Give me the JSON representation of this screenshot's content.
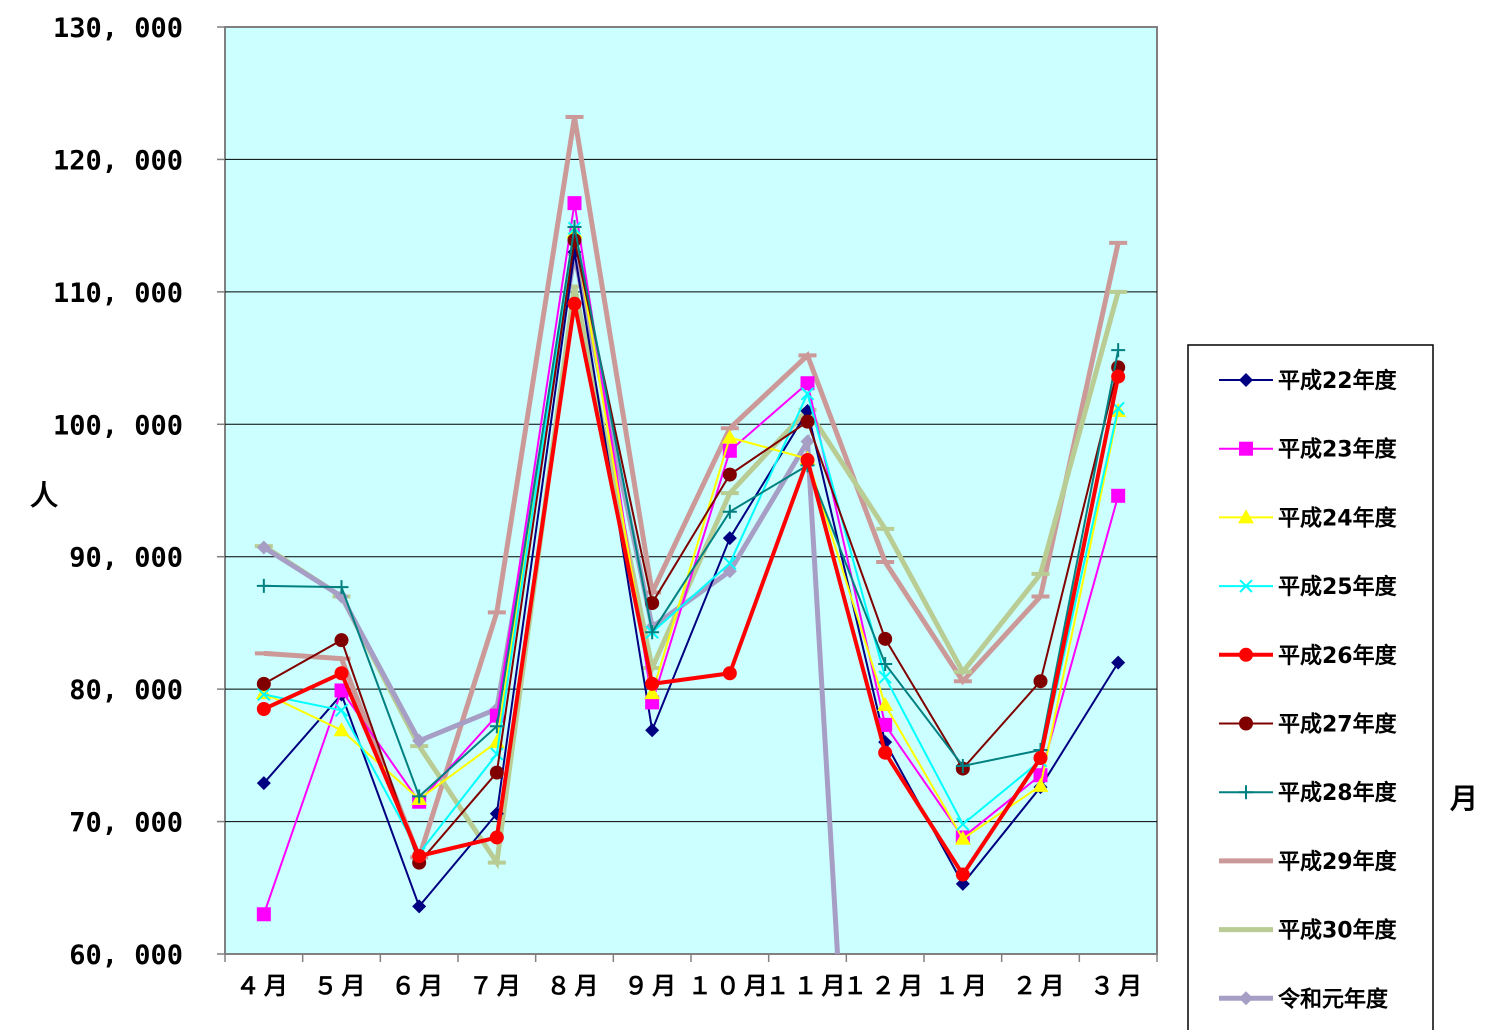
{
  "chart_data": {
    "type": "line",
    "ylabel": "人",
    "xlabel": "月",
    "ylim": [
      60000,
      130000
    ],
    "yticks": [
      60000,
      70000,
      80000,
      90000,
      100000,
      110000,
      120000,
      130000
    ],
    "ytick_labels": [
      "60, 000",
      "70, 000",
      "80, 000",
      "90, 000",
      "100, 000",
      "110, 000",
      "120, 000",
      "130, 000"
    ],
    "categories": [
      "４月",
      "５月",
      "６月",
      "７月",
      "８月",
      "９月",
      "１０月",
      "１１月",
      "１２月",
      "１月",
      "２月",
      "３月"
    ],
    "grid": "horizontal",
    "legend_position": "right",
    "plot_background": "#ccffff",
    "series": [
      {
        "name": "平成22年度",
        "color": "#000080",
        "marker": "diamond",
        "width": 2,
        "values": [
          72900,
          79600,
          63600,
          70600,
          113000,
          76900,
          91400,
          101000,
          76000,
          65300,
          72600,
          82000
        ]
      },
      {
        "name": "平成23年度",
        "color": "#ff00ff",
        "marker": "square",
        "width": 2,
        "values": [
          63000,
          79900,
          71500,
          78000,
          116700,
          79000,
          98000,
          103100,
          77300,
          68800,
          73500,
          94600
        ]
      },
      {
        "name": "平成24年度",
        "color": "#ffff00",
        "marker": "triangle",
        "width": 2,
        "values": [
          79700,
          76900,
          71700,
          76000,
          114500,
          79700,
          99000,
          97400,
          78800,
          68700,
          72700,
          101000
        ]
      },
      {
        "name": "平成25年度",
        "color": "#00ffff",
        "marker": "x",
        "width": 2,
        "values": [
          79600,
          78400,
          67600,
          75100,
          114800,
          84300,
          89500,
          102300,
          80900,
          69800,
          74600,
          101200
        ]
      },
      {
        "name": "平成26年度",
        "color": "#ff0000",
        "marker": "circle",
        "width": 4,
        "values": [
          78500,
          81200,
          67400,
          68800,
          109100,
          80400,
          81200,
          97300,
          75200,
          66000,
          74800,
          103600
        ]
      },
      {
        "name": "平成27年度",
        "color": "#800000",
        "marker": "circle",
        "width": 2,
        "values": [
          80400,
          83700,
          66900,
          73700,
          113900,
          86500,
          96200,
          100200,
          83800,
          74000,
          80600,
          104300
        ]
      },
      {
        "name": "平成28年度",
        "color": "#008080",
        "marker": "plus",
        "width": 2,
        "values": [
          87800,
          87700,
          71900,
          77200,
          114900,
          84300,
          93400,
          96900,
          81900,
          74200,
          75400,
          105600
        ]
      },
      {
        "name": "平成29年度",
        "color": "#cc9999",
        "marker": "dash",
        "width": 5,
        "values": [
          82700,
          82300,
          67300,
          85800,
          123200,
          87300,
          99700,
          105200,
          89600,
          80600,
          87000,
          113700
        ]
      },
      {
        "name": "平成30年度",
        "color": "#b8cc94",
        "marker": "dash",
        "width": 5,
        "values": [
          90800,
          87000,
          75700,
          66900,
          110400,
          81600,
          94800,
          101100,
          92100,
          81300,
          88700,
          110000
        ]
      },
      {
        "name": "令和元年度",
        "color": "#a79ec5",
        "marker": "diamond",
        "width": 5,
        "values": [
          90700,
          87000,
          76100,
          78500,
          112800,
          84700,
          88900,
          98700,
          60000,
          null,
          null,
          null
        ]
      }
    ]
  }
}
